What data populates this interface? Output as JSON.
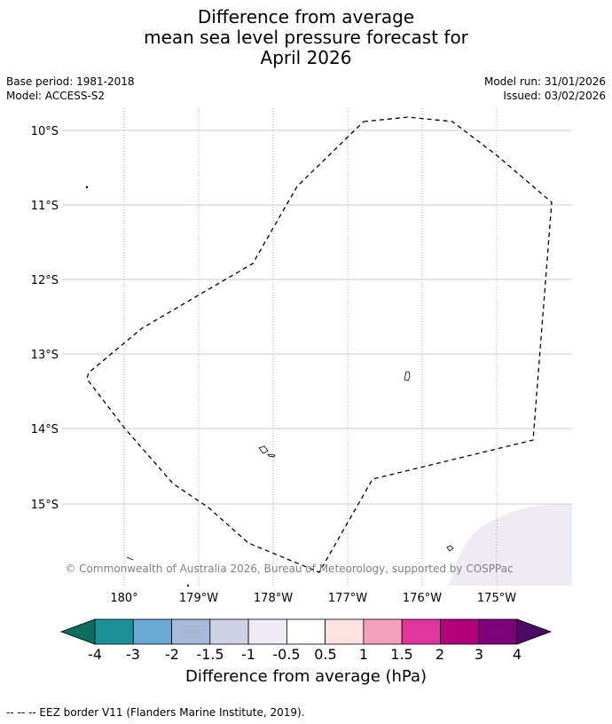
{
  "title": {
    "line1": "Difference from average",
    "line2": "mean sea level pressure forecast for",
    "line3": "April 2026"
  },
  "meta": {
    "base_period": "Base period: 1981-2018",
    "model": "Model: ACCESS-S2",
    "model_run": "Model run: 31/01/2026",
    "issued": "Issued: 03/02/2026"
  },
  "map": {
    "lat_labels": [
      "10°S",
      "11°S",
      "12°S",
      "13°S",
      "14°S",
      "15°S"
    ],
    "lon_labels": [
      "180°",
      "179°W",
      "178°W",
      "177°W",
      "176°W",
      "175°W"
    ],
    "copyright": "© Commonwealth of Australia 2026, Bureau of Meteorology, supported by COSPPac",
    "shading_color": "#efeaf3"
  },
  "colorbar": {
    "tick_labels": [
      "-4",
      "-3",
      "-2",
      "-1.5",
      "-1",
      "-0.5",
      "0.5",
      "1",
      "1.5",
      "2",
      "3",
      "4"
    ],
    "under_color": "#0b6e5e",
    "over_color": "#4a0a66",
    "colors": [
      "#1b9196",
      "#69a9d4",
      "#a6bada",
      "#cfd1e7",
      "#efeaf3",
      "#ffffff",
      "#fde0e0",
      "#f7a1be",
      "#e0359a",
      "#b1007b",
      "#7a0177"
    ],
    "label": "Difference from average (hPa)"
  },
  "footer": "--  --  -- EEZ border V11 (Flanders Marine Institute, 2019)."
}
